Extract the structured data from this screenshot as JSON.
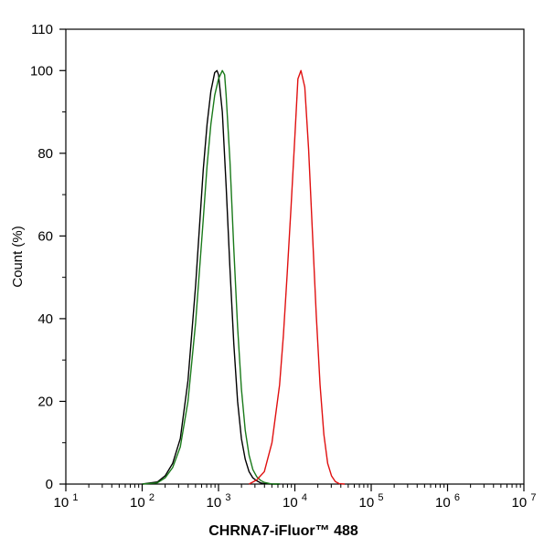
{
  "chart_data": {
    "type": "line",
    "title": "",
    "xlabel": "CHRNA7-iFluor™ 488",
    "ylabel": "Count  (%)",
    "xscale": "log",
    "xlim": [
      10,
      10000000
    ],
    "ylim": [
      0,
      110
    ],
    "x_tick_values": [
      10,
      100,
      1000,
      10000,
      100000,
      1000000,
      10000000
    ],
    "x_tick_labels": [
      {
        "base": "10",
        "exp": "1"
      },
      {
        "base": "10",
        "exp": "2"
      },
      {
        "base": "10",
        "exp": "3"
      },
      {
        "base": "10",
        "exp": "4"
      },
      {
        "base": "10",
        "exp": "5"
      },
      {
        "base": "10",
        "exp": "6"
      },
      {
        "base": "10",
        "exp": "7"
      }
    ],
    "y_tick_values": [
      0,
      20,
      40,
      60,
      80,
      100,
      110
    ],
    "y_tick_labels": [
      "0",
      "20",
      "40",
      "60",
      "80",
      "100",
      "110"
    ],
    "grid": false,
    "legend": "none",
    "series": [
      {
        "color": "#000000",
        "x": [
          100,
          158,
          200,
          251,
          316,
          398,
          501,
          631,
          708,
          794,
          891,
          955,
          1000,
          1122,
          1259,
          1413,
          1585,
          1778,
          1995,
          2239,
          2512,
          2818,
          3162,
          3548,
          3981,
          5012,
          6310
        ],
        "y": [
          0,
          0.5,
          2,
          5,
          11,
          25,
          48,
          76,
          87,
          95,
          99.5,
          100,
          99,
          90,
          72,
          52,
          34,
          20,
          11,
          6,
          3,
          1.5,
          0.8,
          0.3,
          0.1,
          0,
          0
        ]
      },
      {
        "color": "#1a7a1a",
        "x": [
          100,
          158,
          200,
          251,
          316,
          398,
          501,
          631,
          708,
          794,
          891,
          1000,
          1122,
          1202,
          1259,
          1413,
          1585,
          1778,
          1995,
          2239,
          2512,
          2818,
          3162,
          3548,
          3981,
          4467,
          5012,
          6310
        ],
        "y": [
          0,
          0.3,
          1.5,
          4,
          9,
          20,
          39,
          64,
          77,
          87,
          94,
          98,
          100,
          99,
          94,
          78,
          57,
          38,
          23,
          13,
          7,
          3.5,
          1.8,
          0.9,
          0.4,
          0.2,
          0,
          0
        ]
      },
      {
        "color": "#e01010",
        "x": [
          2512,
          3162,
          3981,
          5012,
          6310,
          7079,
          7943,
          8913,
          10000,
          10965,
          12023,
          13490,
          15136,
          16982,
          19055,
          21380,
          23988,
          26915,
          30200,
          33884,
          38019,
          45000
        ],
        "y": [
          0,
          1,
          3,
          10,
          24,
          36,
          51,
          67,
          84,
          98,
          100,
          96,
          81,
          61,
          41,
          24,
          12,
          5,
          2,
          0.6,
          0.1,
          0
        ]
      }
    ]
  }
}
